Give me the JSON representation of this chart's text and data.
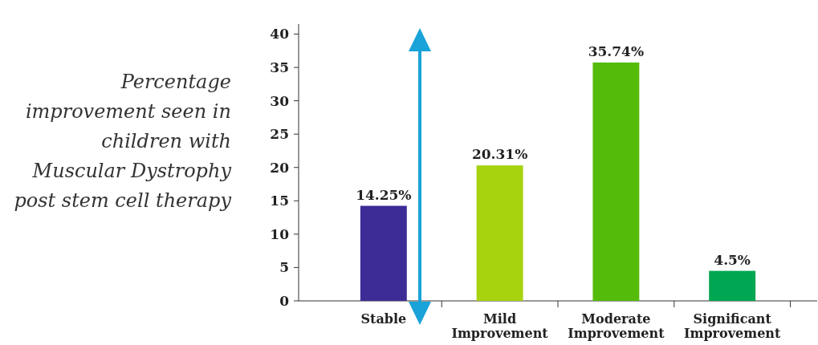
{
  "chart_data": {
    "type": "bar",
    "title": "Percentage\nimprovement seen in\nchildren with\nMuscular Dystrophy\npost stem cell therapy",
    "categories": [
      "Stable",
      "Mild\nImprovement",
      "Moderate\nImprovement",
      "Significant\nImprovement"
    ],
    "values": [
      14.25,
      20.31,
      35.74,
      4.5
    ],
    "colors": [
      "#3d2c96",
      "#a6d20e",
      "#55bb0a",
      "#00a651"
    ],
    "value_labels": [
      "14.25%",
      "20.31%",
      "35.74%",
      "4.5%"
    ],
    "ylim": [
      0,
      41.5
    ],
    "yticks": [
      0,
      5,
      10,
      15,
      20,
      25,
      30,
      35,
      40
    ],
    "grid": false
  }
}
